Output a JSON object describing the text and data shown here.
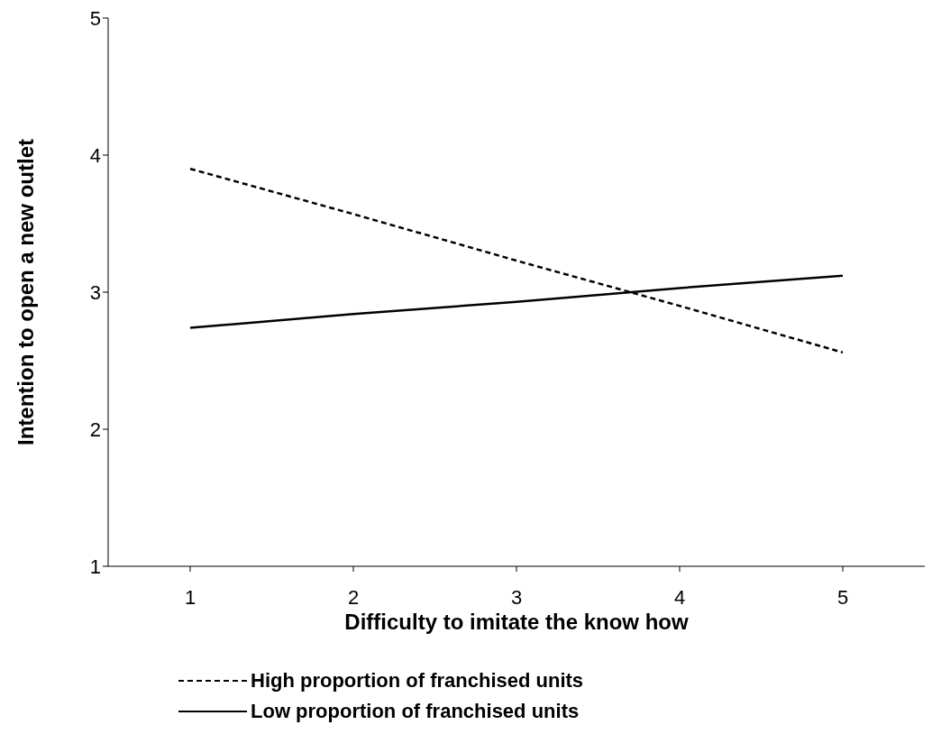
{
  "chart_data": {
    "type": "line",
    "xlabel": "Difficulty to imitate the know how",
    "ylabel": "Intention to open a new outlet",
    "categories": [
      "1",
      "2",
      "3",
      "4",
      "5"
    ],
    "series": [
      {
        "name": "High proportion of franchised units",
        "color": "#000000",
        "line_style": "dashed",
        "values": [
          3.9,
          3.57,
          3.23,
          2.9,
          2.56
        ]
      },
      {
        "name": "Low proportion of franchised units",
        "color": "#000000",
        "line_style": "solid",
        "values": [
          2.74,
          2.84,
          2.93,
          3.03,
          3.12
        ]
      }
    ],
    "ylim": [
      1,
      5
    ],
    "yticks": [
      1,
      2,
      3,
      4,
      5
    ],
    "grid": false,
    "legend": "bottom",
    "marker": "none"
  }
}
